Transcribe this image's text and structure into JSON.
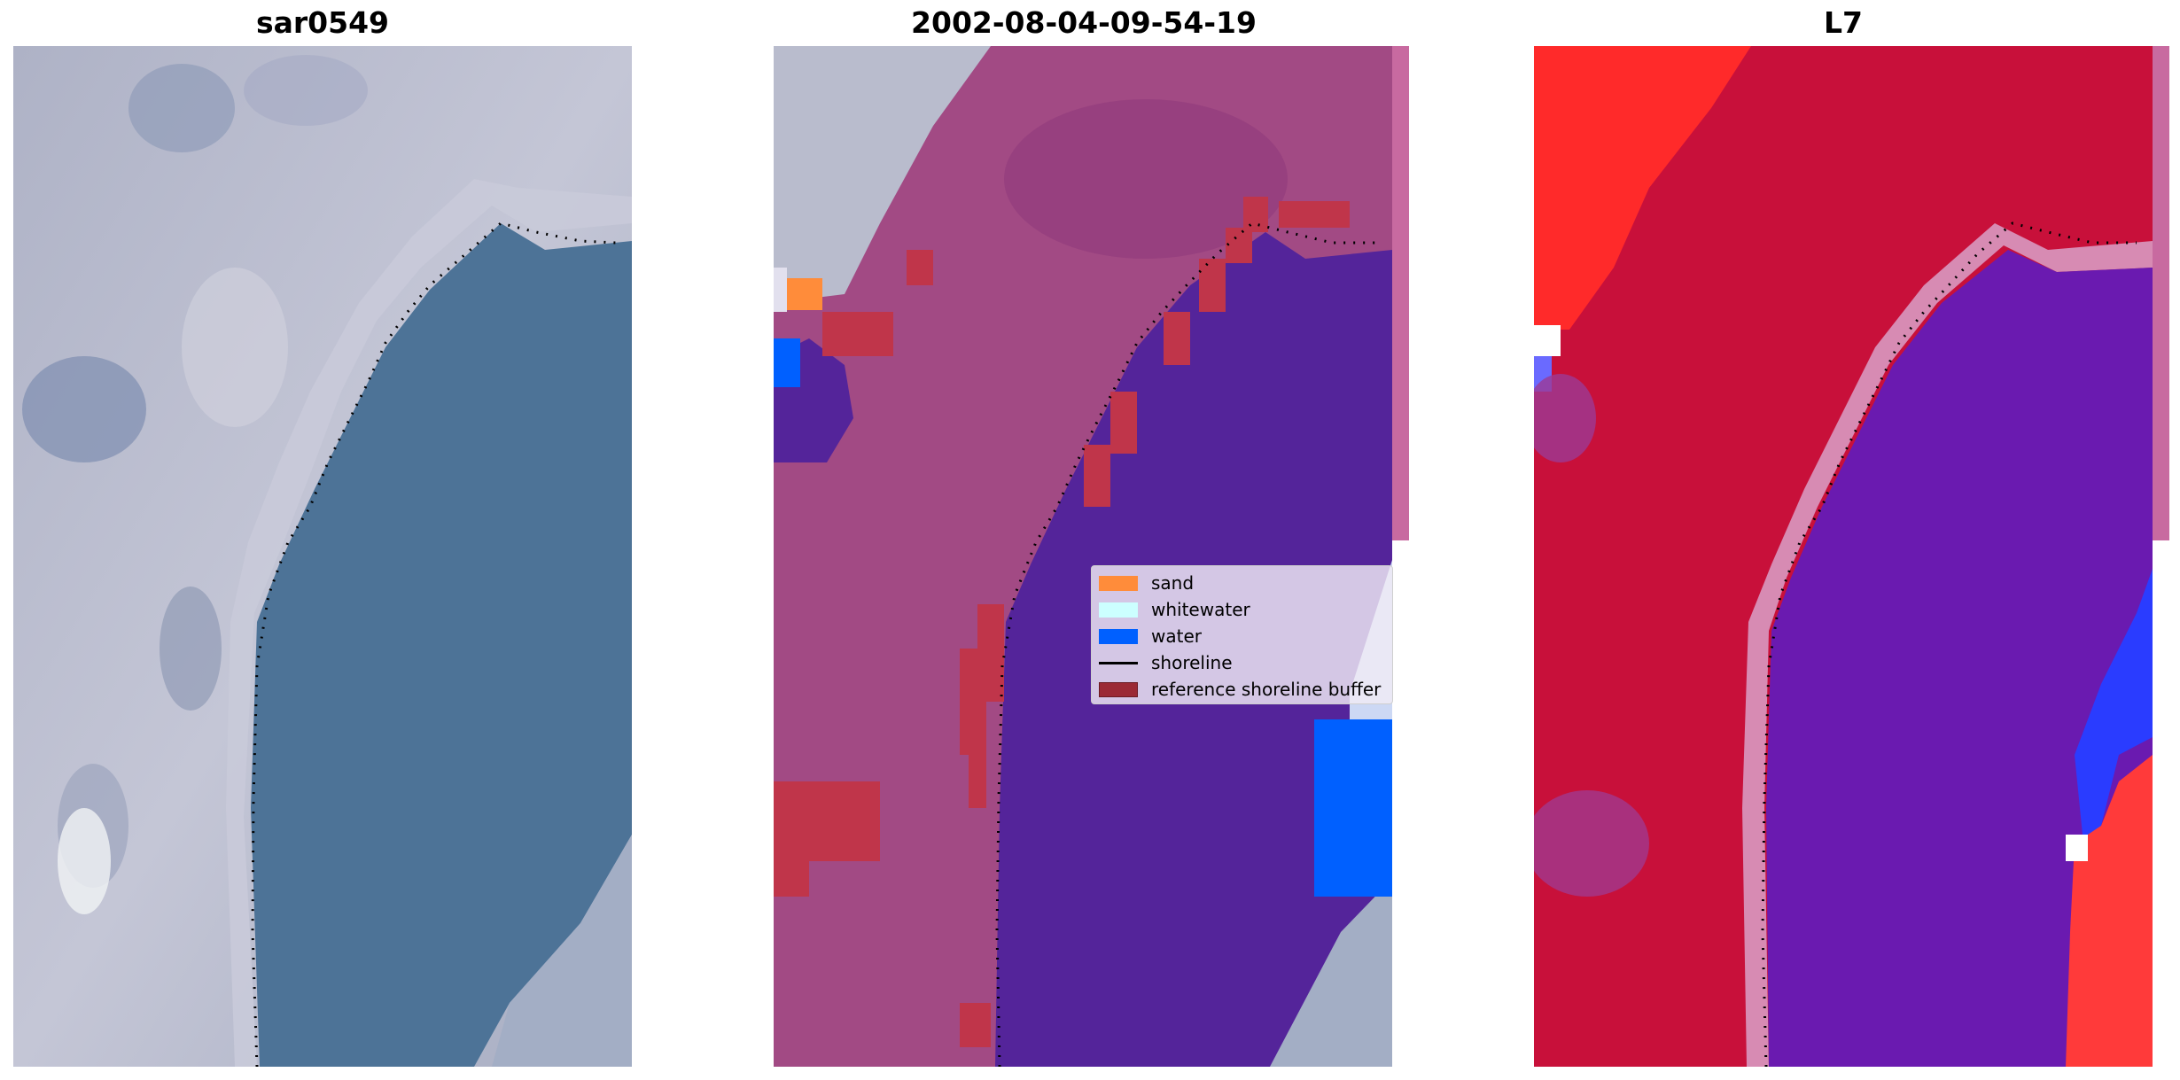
{
  "panels": [
    {
      "id": "rgb",
      "title": "sar0549"
    },
    {
      "id": "class",
      "title": "2002-08-04-09-54-19"
    },
    {
      "id": "l7",
      "title": "L7"
    }
  ],
  "legend": [
    {
      "label": "sand",
      "kind": "patch",
      "color": "#ff8c3a"
    },
    {
      "label": "whitewater",
      "kind": "patch",
      "color": "#ccffff"
    },
    {
      "label": "water",
      "kind": "patch",
      "color": "#0060ff"
    },
    {
      "label": "shoreline",
      "kind": "line",
      "color": "#000000"
    },
    {
      "label": "reference shoreline buffer",
      "kind": "patch",
      "color": "#9b2a35"
    }
  ],
  "colors": {
    "land_rgb": "#b8bacb",
    "water_rgb": "#4c7196",
    "land_overlay": "#a24a84",
    "water_overlay": "#54249a",
    "buffer": "#c0354a",
    "index_positive": "#c8103a",
    "index_negative": "#6a1ab0",
    "index_saturated": "#ff2a2a"
  }
}
